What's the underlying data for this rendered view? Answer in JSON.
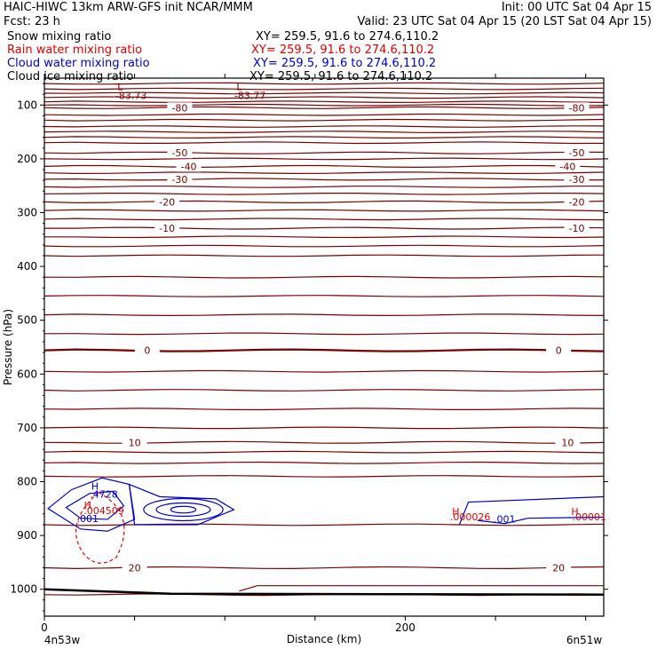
{
  "header": {
    "line1_left": "HAIC-HIWC 13km ARW-GFS init   NCAR/MMM",
    "line1_right": "Init: 00 UTC Sat 04 Apr 15",
    "line2_left": "Fcst:   23 h",
    "line2_right": "Valid: 23 UTC Sat 04 Apr 15 (20 LST Sat 04 Apr 15)"
  },
  "fields": [
    {
      "name": "Snow mixing ratio",
      "xy": "XY= 259.5, 91.6 to 274.6,110.2",
      "color": "#000000"
    },
    {
      "name": "Rain water mixing ratio",
      "xy": "XY= 259.5, 91.6 to 274.6,110.2",
      "color": "#e00000"
    },
    {
      "name": "Cloud water mixing ratio",
      "xy": "XY= 259.5, 91.6 to 274.6,110.2",
      "color": "#0000cc"
    },
    {
      "name": "Cloud ice mixing ratio",
      "xy": "XY= 259.5, 91.6 to 274.6,110.2",
      "color": "#000000"
    }
  ],
  "chart_data": {
    "type": "contour-cross-section",
    "xlabel": "Distance (km)",
    "ylabel": "Pressure (hPa)",
    "xlim": [
      0,
      310
    ],
    "ylim": [
      1050,
      50
    ],
    "x_ticks": [
      0,
      200
    ],
    "y_ticks": [
      100,
      200,
      300,
      400,
      500,
      600,
      700,
      800,
      900,
      1000
    ],
    "endpoints": {
      "left": "4n53w",
      "right": "6n51w"
    },
    "temperature_contours": {
      "color": "#7a0000",
      "levels": [
        {
          "label": "-80",
          "p": 105,
          "label_x": [
            75,
            295
          ]
        },
        {
          "label": "-50",
          "p": 189,
          "label_x": [
            75,
            295
          ]
        },
        {
          "label": "-40",
          "p": 214,
          "label_x": [
            80,
            290
          ]
        },
        {
          "label": "-30",
          "p": 238,
          "label_x": [
            75,
            295
          ]
        },
        {
          "label": "-20",
          "p": 280,
          "label_x": [
            68,
            295
          ]
        },
        {
          "label": "-10",
          "p": 329,
          "label_x": [
            68,
            295
          ]
        },
        {
          "label": "0",
          "p": 556,
          "label_x": [
            57,
            285
          ]
        },
        {
          "label": "10",
          "p": 727,
          "label_x": [
            50,
            290
          ]
        },
        {
          "label": "20",
          "p": 960,
          "label_x": [
            50,
            285
          ]
        }
      ],
      "other_pressures": [
        60,
        70,
        78,
        86,
        94,
        100,
        118,
        128,
        140,
        150,
        160,
        170,
        200,
        226,
        252,
        265,
        296,
        312,
        345,
        362,
        380,
        420,
        455,
        490,
        525,
        595,
        630,
        665,
        700,
        745,
        765,
        790,
        880,
        1010
      ]
    },
    "annotations": [
      {
        "text": "L",
        "x": 42,
        "p": 72,
        "color": "#7a0000"
      },
      {
        "text": "-83.73",
        "x": 48,
        "p": 89,
        "color": "#7a0000"
      },
      {
        "text": "L",
        "x": 108,
        "p": 72,
        "color": "#7a0000"
      },
      {
        "text": "-83.77",
        "x": 114,
        "p": 89,
        "color": "#7a0000"
      },
      {
        "text": "H",
        "x": 28,
        "p": 815,
        "color": "#0000cc"
      },
      {
        "text": ".4728",
        "x": 33,
        "p": 830,
        "color": "#0000cc"
      },
      {
        "text": "H",
        "x": 24,
        "p": 850,
        "color": "#e00000"
      },
      {
        "text": ".004509",
        "x": 33,
        "p": 860,
        "color": "#e00000"
      },
      {
        "text": ".001",
        "x": 24,
        "p": 875,
        "color": "#0000cc"
      },
      {
        "text": "H",
        "x": 228,
        "p": 862,
        "color": "#e00000"
      },
      {
        "text": ".000026",
        "x": 236,
        "p": 872,
        "color": "#e00000"
      },
      {
        "text": ".001",
        "x": 255,
        "p": 876,
        "color": "#0000cc"
      },
      {
        "text": "H",
        "x": 294,
        "p": 862,
        "color": "#e00000"
      },
      {
        "text": ".00001",
        "x": 302,
        "p": 872,
        "color": "#e00000"
      }
    ]
  }
}
